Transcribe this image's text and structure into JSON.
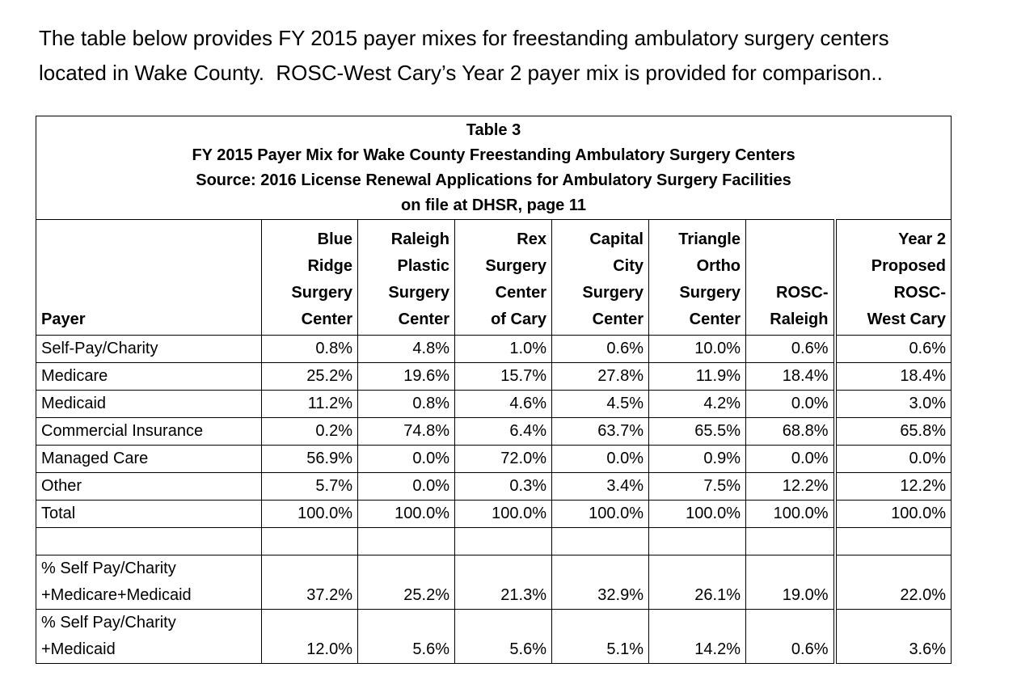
{
  "intro": [
    "The table below provides FY 2015 payer mixes for freestanding ambulatory surgery centers",
    "located in Wake County.  ROSC-West Cary’s Year 2 payer mix is provided for comparison.."
  ],
  "table": {
    "title": [
      "Table 3",
      "FY 2015 Payer Mix for Wake County Freestanding Ambulatory Surgery Centers",
      "Source: 2016 License Renewal Applications for Ambulatory Surgery Facilities",
      "on file at DHSR, page 11"
    ],
    "header": [
      [
        "Payer"
      ],
      [
        "Blue",
        "Ridge",
        "Surgery",
        "Center"
      ],
      [
        "Raleigh",
        "Plastic",
        "Surgery",
        "Center"
      ],
      [
        "Rex",
        "Surgery",
        "Center",
        "of Cary"
      ],
      [
        "Capital",
        "City",
        "Surgery",
        "Center"
      ],
      [
        "Triangle",
        "Ortho",
        "Surgery",
        "Center"
      ],
      [
        "ROSC-",
        "Raleigh"
      ],
      [
        "Year 2",
        "Proposed",
        "ROSC-",
        "West Cary"
      ]
    ],
    "rows": [
      [
        [
          "Self-Pay/Charity"
        ],
        "0.8%",
        "4.8%",
        "1.0%",
        "0.6%",
        "10.0%",
        "0.6%",
        "0.6%"
      ],
      [
        [
          "Medicare"
        ],
        "25.2%",
        "19.6%",
        "15.7%",
        "27.8%",
        "11.9%",
        "18.4%",
        "18.4%"
      ],
      [
        [
          "Medicaid"
        ],
        "11.2%",
        "0.8%",
        "4.6%",
        "4.5%",
        "4.2%",
        "0.0%",
        "3.0%"
      ],
      [
        [
          "Commercial Insurance"
        ],
        "0.2%",
        "74.8%",
        "6.4%",
        "63.7%",
        "65.5%",
        "68.8%",
        "65.8%"
      ],
      [
        [
          "Managed Care"
        ],
        "56.9%",
        "0.0%",
        "72.0%",
        "0.0%",
        "0.9%",
        "0.0%",
        "0.0%"
      ],
      [
        [
          "Other"
        ],
        "5.7%",
        "0.0%",
        "0.3%",
        "3.4%",
        "7.5%",
        "12.2%",
        "12.2%"
      ],
      [
        [
          "Total"
        ],
        "100.0%",
        "100.0%",
        "100.0%",
        "100.0%",
        "100.0%",
        "100.0%",
        "100.0%"
      ],
      null,
      [
        [
          "% Self Pay/Charity",
          "+Medicare+Medicaid"
        ],
        "37.2%",
        "25.2%",
        "21.3%",
        "32.9%",
        "26.1%",
        "19.0%",
        "22.0%"
      ],
      [
        [
          "% Self Pay/Charity",
          "+Medicaid"
        ],
        "12.0%",
        "5.6%",
        "5.6%",
        "5.1%",
        "14.2%",
        "0.6%",
        "3.6%"
      ]
    ]
  }
}
